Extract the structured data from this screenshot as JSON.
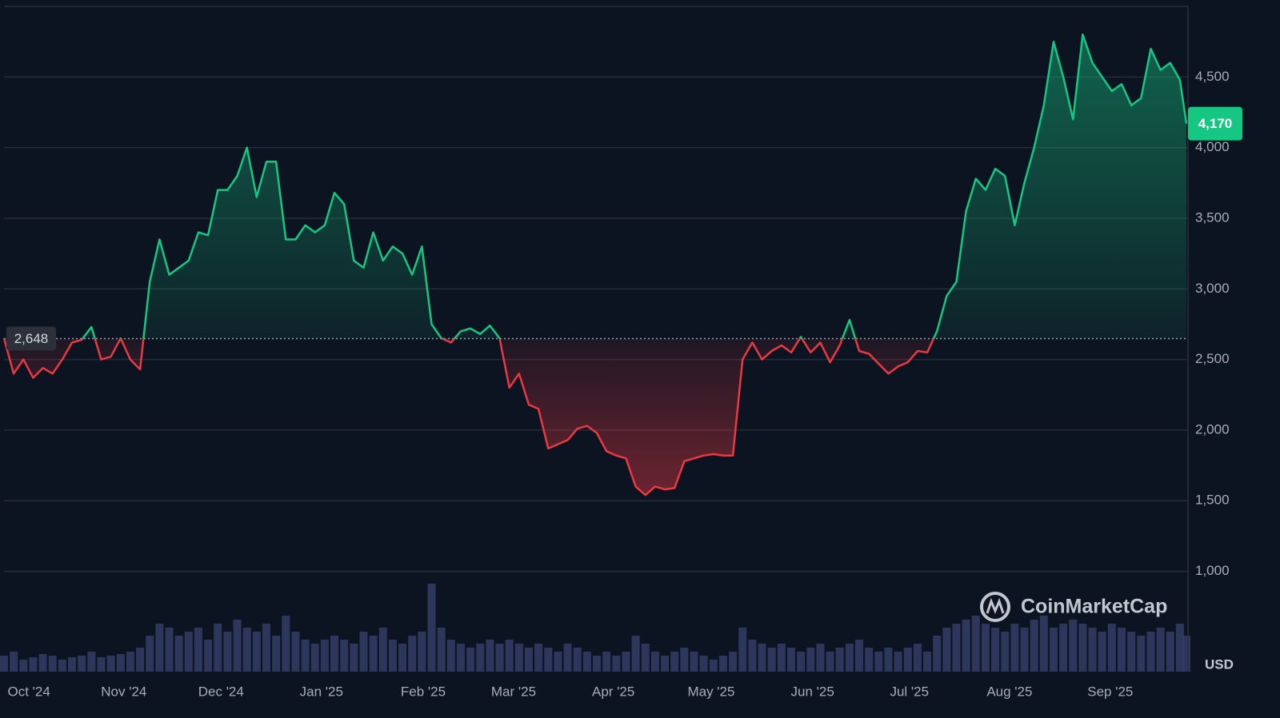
{
  "chart_data": {
    "type": "baseline-line",
    "x": [
      0,
      3,
      6,
      9,
      12,
      15,
      18,
      21,
      24,
      27,
      30,
      33,
      36,
      39,
      42,
      45,
      48,
      51,
      54,
      57,
      60,
      63,
      66,
      69,
      72,
      75,
      78,
      81,
      84,
      87,
      90,
      93,
      96,
      99,
      102,
      105,
      108,
      111,
      114,
      117,
      120,
      123,
      126,
      129,
      132,
      135,
      138,
      141,
      144,
      147,
      150,
      153,
      156,
      159,
      162,
      165,
      168,
      171,
      174,
      177,
      180,
      183,
      186,
      189,
      192,
      195,
      198,
      201,
      204,
      207,
      210,
      213,
      216,
      219,
      222,
      225,
      228,
      231,
      234,
      237,
      240,
      243,
      246,
      249,
      252,
      255,
      258,
      261,
      264,
      267,
      270,
      273,
      276,
      279,
      282,
      285,
      288,
      291,
      294,
      297,
      300,
      303,
      306,
      309,
      312,
      315,
      318,
      321,
      324,
      327,
      330,
      333,
      336,
      339,
      342,
      345,
      348,
      351,
      354,
      357,
      360,
      363,
      365
    ],
    "values": [
      2650,
      2400,
      2500,
      2370,
      2440,
      2400,
      2500,
      2620,
      2640,
      2730,
      2500,
      2520,
      2650,
      2500,
      2430,
      3050,
      3350,
      3100,
      3150,
      3200,
      3400,
      3380,
      3700,
      3700,
      3800,
      4000,
      3650,
      3900,
      3900,
      3350,
      3350,
      3450,
      3400,
      3450,
      3680,
      3600,
      3200,
      3150,
      3400,
      3200,
      3300,
      3250,
      3100,
      3300,
      2750,
      2650,
      2620,
      2700,
      2720,
      2680,
      2740,
      2650,
      2300,
      2400,
      2180,
      2150,
      1870,
      1900,
      1930,
      2010,
      2030,
      1980,
      1850,
      1820,
      1800,
      1600,
      1540,
      1600,
      1580,
      1590,
      1780,
      1800,
      1820,
      1830,
      1820,
      1820,
      2500,
      2620,
      2500,
      2560,
      2600,
      2550,
      2660,
      2550,
      2620,
      2480,
      2600,
      2780,
      2560,
      2540,
      2470,
      2400,
      2450,
      2480,
      2560,
      2550,
      2700,
      2950,
      3050,
      3550,
      3780,
      3700,
      3850,
      3800,
      3450,
      3750,
      4000,
      4300,
      4750,
      4500,
      4200,
      4800,
      4600,
      4500,
      4400,
      4450,
      4300,
      4350,
      4700,
      4550,
      4600,
      4480,
      4170
    ],
    "volume": {
      "values": [
        20,
        25,
        15,
        18,
        22,
        20,
        15,
        18,
        20,
        25,
        18,
        20,
        22,
        25,
        30,
        45,
        60,
        55,
        45,
        50,
        55,
        40,
        60,
        50,
        65,
        55,
        50,
        60,
        45,
        70,
        50,
        40,
        35,
        40,
        45,
        40,
        35,
        50,
        45,
        55,
        40,
        35,
        45,
        50,
        110,
        55,
        40,
        35,
        30,
        35,
        40,
        35,
        40,
        35,
        30,
        35,
        30,
        25,
        35,
        30,
        25,
        20,
        25,
        20,
        25,
        45,
        35,
        25,
        20,
        25,
        30,
        25,
        20,
        15,
        20,
        25,
        55,
        40,
        35,
        30,
        35,
        30,
        25,
        30,
        35,
        25,
        30,
        35,
        40,
        30,
        25,
        30,
        25,
        30,
        35,
        25,
        45,
        55,
        60,
        65,
        70,
        60,
        55,
        50,
        60,
        55,
        65,
        70,
        55,
        60,
        65,
        60,
        55,
        50,
        60,
        55,
        50,
        45,
        50,
        55,
        50,
        60,
        45
      ],
      "ylim": [
        0,
        120
      ],
      "color": "#34406a"
    },
    "baseline": {
      "value": 2648,
      "label": "2,648"
    },
    "current_price": {
      "value": 4170,
      "label": "4,170"
    },
    "up_color": "#16c784",
    "down_color": "#ea3943",
    "xlim": [
      0,
      365
    ],
    "ylim": [
      290,
      5000
    ],
    "xticks": [
      {
        "value": 7.7,
        "label": "Oct '24"
      },
      {
        "value": 37,
        "label": "Nov '24"
      },
      {
        "value": 67,
        "label": "Dec '24"
      },
      {
        "value": 98,
        "label": "Jan '25"
      },
      {
        "value": 129.4,
        "label": "Feb '25"
      },
      {
        "value": 157.3,
        "label": "Mar '25"
      },
      {
        "value": 188.1,
        "label": "Apr '25"
      },
      {
        "value": 218.3,
        "label": "May '25"
      },
      {
        "value": 249.6,
        "label": "Jun '25"
      },
      {
        "value": 279.5,
        "label": "Jul '25"
      },
      {
        "value": 310.4,
        "label": "Aug '25"
      },
      {
        "value": 341.5,
        "label": "Sep '25"
      }
    ],
    "yticks": [
      {
        "value": 1000,
        "label": "1,000"
      },
      {
        "value": 1500,
        "label": "1,500"
      },
      {
        "value": 2000,
        "label": "2,000"
      },
      {
        "value": 2500,
        "label": "2,500"
      },
      {
        "value": 3000,
        "label": "3,000"
      },
      {
        "value": 3500,
        "label": "3,500"
      },
      {
        "value": 4000,
        "label": "4,000"
      },
      {
        "value": 4500,
        "label": "4,500"
      }
    ],
    "currency": "USD",
    "watermark": "CoinMarketCap",
    "grid": true
  }
}
